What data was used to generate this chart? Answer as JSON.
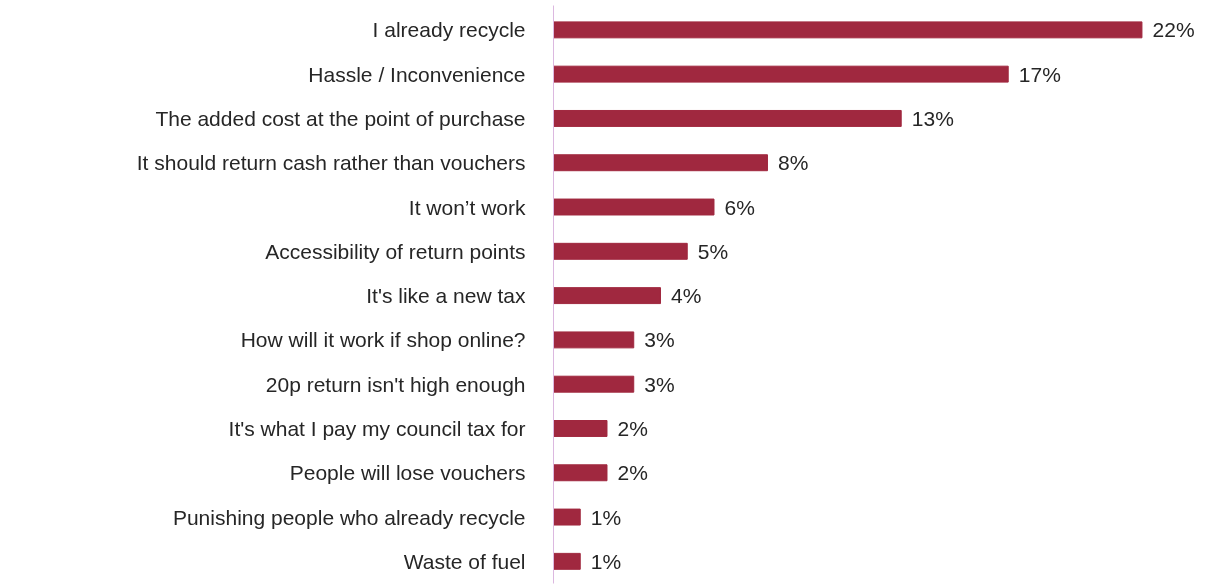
{
  "chart_data": {
    "type": "bar",
    "orientation": "horizontal",
    "categories": [
      "I already recycle",
      "Hassle / Inconvenience",
      "The added cost at the point of purchase",
      "It should return cash rather than vouchers",
      "It won’t work",
      "Accessibility of return points",
      "It's like a new tax",
      "How will it work if shop online?",
      "20p return isn't high enough",
      "It's what I pay my council tax for",
      "People will lose vouchers",
      "Punishing people who already recycle",
      "Waste of fuel"
    ],
    "values": [
      22,
      17,
      13,
      8,
      6,
      5,
      4,
      3,
      3,
      2,
      2,
      1,
      1
    ],
    "value_labels": [
      "22%",
      "17%",
      "13%",
      "8%",
      "6%",
      "5%",
      "4%",
      "3%",
      "3%",
      "2%",
      "2%",
      "1%",
      "1%"
    ],
    "color": "#a0283f",
    "grid": false
  }
}
